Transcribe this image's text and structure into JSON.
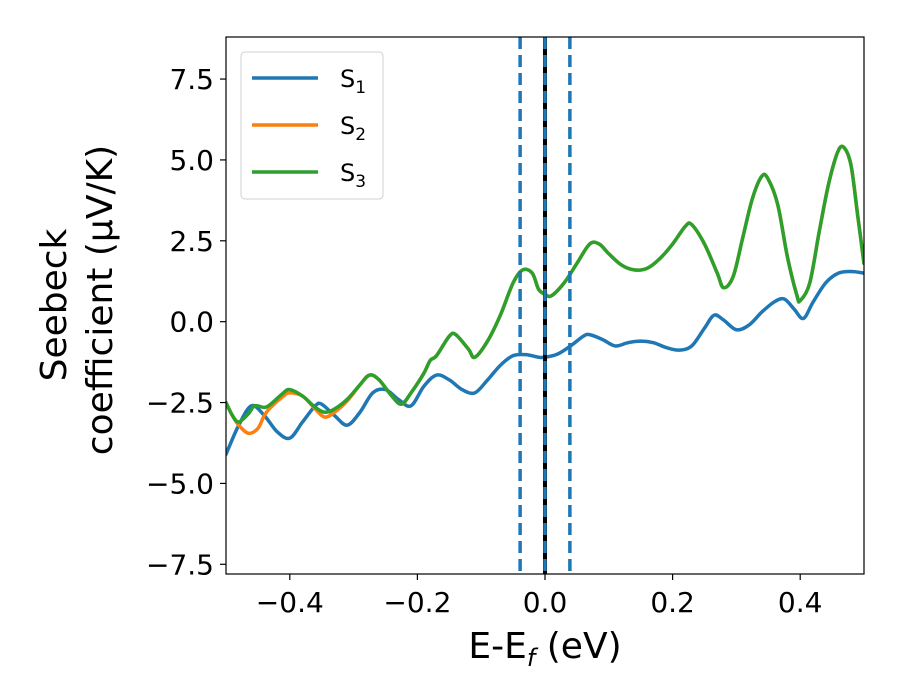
{
  "chart_data": {
    "type": "line",
    "xlabel_main": "E-E",
    "xlabel_sub": "f",
    "xlabel_unit": " (eV)",
    "ylabel_line1": "Seebeck",
    "ylabel_line2": "coefficient  (μV/K)",
    "xlim": [
      -0.5,
      0.5
    ],
    "ylim": [
      -7.8,
      8.8
    ],
    "xticks": [
      -0.4,
      -0.2,
      0.0,
      0.2,
      0.4
    ],
    "xtick_labels": [
      "−0.4",
      "−0.2",
      "0.0",
      "0.2",
      "0.4"
    ],
    "yticks": [
      7.5,
      5.0,
      2.5,
      0.0,
      -2.5,
      -5.0,
      -7.5
    ],
    "ytick_labels": [
      "7.5",
      "5.0",
      "2.5",
      "0.0",
      "−2.5",
      "−5.0",
      "−7.5"
    ],
    "legend_position": "top-left",
    "vlines": [
      {
        "x": 0.0,
        "style": "solid",
        "color": "#000000"
      },
      {
        "x": 0.0,
        "style": "dashed",
        "color": "#1f77b4"
      },
      {
        "x": -0.039,
        "style": "dashed",
        "color": "#1f77b4"
      },
      {
        "x": 0.039,
        "style": "dashed",
        "color": "#1f77b4"
      }
    ],
    "series": [
      {
        "name_main": "S",
        "name_sub": "1",
        "color": "#1f77b4",
        "points": [
          [
            -0.5,
            -4.1
          ],
          [
            -0.48,
            -3.2
          ],
          [
            -0.46,
            -2.6
          ],
          [
            -0.44,
            -2.9
          ],
          [
            -0.42,
            -3.4
          ],
          [
            -0.4,
            -3.6
          ],
          [
            -0.38,
            -3.1
          ],
          [
            -0.36,
            -2.6
          ],
          [
            -0.35,
            -2.55
          ],
          [
            -0.33,
            -2.9
          ],
          [
            -0.31,
            -3.2
          ],
          [
            -0.29,
            -2.8
          ],
          [
            -0.27,
            -2.2
          ],
          [
            -0.25,
            -2.1
          ],
          [
            -0.23,
            -2.4
          ],
          [
            -0.21,
            -2.6
          ],
          [
            -0.19,
            -2.0
          ],
          [
            -0.17,
            -1.65
          ],
          [
            -0.15,
            -1.8
          ],
          [
            -0.13,
            -2.1
          ],
          [
            -0.11,
            -2.2
          ],
          [
            -0.09,
            -1.8
          ],
          [
            -0.07,
            -1.35
          ],
          [
            -0.05,
            -1.05
          ],
          [
            -0.03,
            -1.02
          ],
          [
            -0.01,
            -1.1
          ],
          [
            0.0,
            -1.1
          ],
          [
            0.02,
            -1.0
          ],
          [
            0.04,
            -0.75
          ],
          [
            0.06,
            -0.45
          ],
          [
            0.07,
            -0.4
          ],
          [
            0.09,
            -0.55
          ],
          [
            0.11,
            -0.75
          ],
          [
            0.13,
            -0.65
          ],
          [
            0.15,
            -0.6
          ],
          [
            0.17,
            -0.65
          ],
          [
            0.19,
            -0.8
          ],
          [
            0.21,
            -0.88
          ],
          [
            0.23,
            -0.75
          ],
          [
            0.25,
            -0.2
          ],
          [
            0.265,
            0.2
          ],
          [
            0.28,
            0.05
          ],
          [
            0.3,
            -0.25
          ],
          [
            0.32,
            -0.1
          ],
          [
            0.34,
            0.3
          ],
          [
            0.36,
            0.62
          ],
          [
            0.375,
            0.7
          ],
          [
            0.39,
            0.4
          ],
          [
            0.405,
            0.1
          ],
          [
            0.42,
            0.6
          ],
          [
            0.44,
            1.2
          ],
          [
            0.46,
            1.5
          ],
          [
            0.48,
            1.55
          ],
          [
            0.5,
            1.5
          ]
        ]
      },
      {
        "name_main": "S",
        "name_sub": "2",
        "color": "#ff7f0e",
        "points": [
          [
            -0.5,
            -2.5
          ],
          [
            -0.49,
            -2.9
          ],
          [
            -0.48,
            -3.2
          ],
          [
            -0.465,
            -3.45
          ],
          [
            -0.45,
            -3.3
          ],
          [
            -0.44,
            -2.9
          ],
          [
            -0.43,
            -2.65
          ],
          [
            -0.41,
            -2.3
          ],
          [
            -0.4,
            -2.2
          ],
          [
            -0.38,
            -2.3
          ],
          [
            -0.36,
            -2.7
          ],
          [
            -0.345,
            -2.95
          ],
          [
            -0.33,
            -2.8
          ],
          [
            -0.31,
            -2.45
          ],
          [
            -0.29,
            -1.95
          ],
          [
            -0.275,
            -1.65
          ],
          [
            -0.26,
            -1.8
          ],
          [
            -0.24,
            -2.3
          ],
          [
            -0.225,
            -2.55
          ],
          [
            -0.21,
            -2.2
          ],
          [
            -0.19,
            -1.6
          ],
          [
            -0.18,
            -1.2
          ],
          [
            -0.17,
            -1.05
          ],
          [
            -0.15,
            -0.45
          ],
          [
            -0.14,
            -0.4
          ],
          [
            -0.12,
            -0.85
          ],
          [
            -0.11,
            -1.1
          ],
          [
            -0.09,
            -0.6
          ],
          [
            -0.07,
            0.2
          ],
          [
            -0.05,
            1.2
          ],
          [
            -0.035,
            1.6
          ],
          [
            -0.02,
            1.5
          ],
          [
            -0.01,
            1.0
          ],
          [
            0.0,
            0.85
          ],
          [
            0.01,
            0.8
          ],
          [
            0.03,
            1.2
          ],
          [
            0.05,
            1.8
          ],
          [
            0.07,
            2.4
          ],
          [
            0.085,
            2.4
          ],
          [
            0.1,
            2.1
          ],
          [
            0.12,
            1.75
          ],
          [
            0.14,
            1.6
          ],
          [
            0.16,
            1.65
          ],
          [
            0.18,
            1.95
          ],
          [
            0.2,
            2.4
          ],
          [
            0.22,
            2.95
          ],
          [
            0.23,
            3.0
          ],
          [
            0.25,
            2.4
          ],
          [
            0.27,
            1.5
          ],
          [
            0.28,
            1.05
          ],
          [
            0.295,
            1.4
          ],
          [
            0.31,
            2.6
          ],
          [
            0.325,
            3.8
          ],
          [
            0.34,
            4.5
          ],
          [
            0.35,
            4.4
          ],
          [
            0.365,
            3.6
          ],
          [
            0.38,
            2.0
          ],
          [
            0.395,
            0.8
          ],
          [
            0.4,
            0.65
          ],
          [
            0.415,
            1.2
          ],
          [
            0.43,
            2.8
          ],
          [
            0.445,
            4.3
          ],
          [
            0.46,
            5.3
          ],
          [
            0.47,
            5.35
          ],
          [
            0.48,
            4.8
          ],
          [
            0.49,
            3.3
          ],
          [
            0.5,
            1.8
          ]
        ]
      },
      {
        "name_main": "S",
        "name_sub": "3",
        "color": "#2ca02c",
        "points": [
          [
            -0.5,
            -2.5
          ],
          [
            -0.49,
            -2.9
          ],
          [
            -0.48,
            -3.1
          ],
          [
            -0.465,
            -2.85
          ],
          [
            -0.455,
            -2.6
          ],
          [
            -0.44,
            -2.65
          ],
          [
            -0.43,
            -2.55
          ],
          [
            -0.41,
            -2.2
          ],
          [
            -0.4,
            -2.1
          ],
          [
            -0.38,
            -2.3
          ],
          [
            -0.36,
            -2.65
          ],
          [
            -0.345,
            -2.8
          ],
          [
            -0.33,
            -2.7
          ],
          [
            -0.31,
            -2.4
          ],
          [
            -0.29,
            -1.95
          ],
          [
            -0.275,
            -1.65
          ],
          [
            -0.26,
            -1.8
          ],
          [
            -0.24,
            -2.3
          ],
          [
            -0.225,
            -2.55
          ],
          [
            -0.21,
            -2.2
          ],
          [
            -0.19,
            -1.6
          ],
          [
            -0.18,
            -1.2
          ],
          [
            -0.17,
            -1.05
          ],
          [
            -0.15,
            -0.45
          ],
          [
            -0.14,
            -0.4
          ],
          [
            -0.12,
            -0.85
          ],
          [
            -0.11,
            -1.1
          ],
          [
            -0.09,
            -0.6
          ],
          [
            -0.07,
            0.2
          ],
          [
            -0.05,
            1.2
          ],
          [
            -0.035,
            1.6
          ],
          [
            -0.02,
            1.5
          ],
          [
            -0.01,
            1.0
          ],
          [
            0.0,
            0.85
          ],
          [
            0.01,
            0.8
          ],
          [
            0.03,
            1.2
          ],
          [
            0.05,
            1.8
          ],
          [
            0.07,
            2.4
          ],
          [
            0.085,
            2.4
          ],
          [
            0.1,
            2.1
          ],
          [
            0.12,
            1.75
          ],
          [
            0.14,
            1.6
          ],
          [
            0.16,
            1.65
          ],
          [
            0.18,
            1.95
          ],
          [
            0.2,
            2.4
          ],
          [
            0.22,
            2.95
          ],
          [
            0.23,
            3.0
          ],
          [
            0.25,
            2.4
          ],
          [
            0.27,
            1.5
          ],
          [
            0.28,
            1.05
          ],
          [
            0.295,
            1.4
          ],
          [
            0.31,
            2.6
          ],
          [
            0.325,
            3.8
          ],
          [
            0.34,
            4.5
          ],
          [
            0.35,
            4.4
          ],
          [
            0.365,
            3.6
          ],
          [
            0.38,
            2.0
          ],
          [
            0.395,
            0.8
          ],
          [
            0.4,
            0.65
          ],
          [
            0.415,
            1.2
          ],
          [
            0.43,
            2.8
          ],
          [
            0.445,
            4.3
          ],
          [
            0.46,
            5.3
          ],
          [
            0.47,
            5.35
          ],
          [
            0.48,
            4.8
          ],
          [
            0.49,
            3.3
          ],
          [
            0.5,
            1.8
          ]
        ]
      }
    ]
  }
}
